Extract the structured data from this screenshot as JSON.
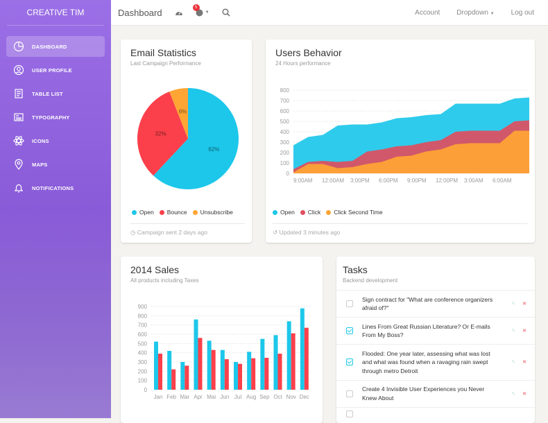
{
  "brand": "CREATIVE TIM",
  "sidebar": {
    "items": [
      {
        "label": "DASHBOARD",
        "icon": "pie-chart-icon",
        "active": true
      },
      {
        "label": "USER PROFILE",
        "icon": "user-icon"
      },
      {
        "label": "TABLE LIST",
        "icon": "note-icon"
      },
      {
        "label": "TYPOGRAPHY",
        "icon": "news-paper-icon"
      },
      {
        "label": "ICONS",
        "icon": "atom-icon"
      },
      {
        "label": "MAPS",
        "icon": "map-pin-icon"
      },
      {
        "label": "NOTIFICATIONS",
        "icon": "bell-icon"
      }
    ]
  },
  "header": {
    "title": "Dashboard",
    "notification_count": "5",
    "account": "Account",
    "dropdown": "Dropdown",
    "logout": "Log out"
  },
  "email_stats": {
    "title": "Email Statistics",
    "subtitle": "Last Campaign Performance",
    "footer": "Campaign sent 2 days ago"
  },
  "users_behavior": {
    "title": "Users Behavior",
    "subtitle": "24 Hours performance",
    "footer": "Updated 3 minutes ago"
  },
  "sales": {
    "title": "2014 Sales",
    "subtitle": "All products including Taxes"
  },
  "tasks": {
    "title": "Tasks",
    "subtitle": "Backend development",
    "items": [
      {
        "text": "Sign contract for \"What are conference organizers afraid of?\"",
        "checked": false
      },
      {
        "text": "Lines From Great Russian Literature? Or E-mails From My Boss?",
        "checked": true
      },
      {
        "text": "Flooded: One year later, assessing what was lost and what was found when a ravaging rain swept through metro Detroit",
        "checked": true
      },
      {
        "text": "Create 4 Invisible User Experiences you Never Knew About",
        "checked": false
      }
    ]
  },
  "colors": {
    "open": "#1dc7ea",
    "bounce": "#fb404b",
    "unsubscribe": "#ffa534",
    "accent": "#9368e9"
  },
  "chart_data": [
    {
      "type": "pie",
      "labels": [
        "Open",
        "Bounce",
        "Unsubscribe"
      ],
      "values": [
        62,
        32,
        6
      ],
      "data_labels": [
        "62%",
        "32%",
        "6%"
      ],
      "legend": "bottom",
      "colors": [
        "#1dc7ea",
        "#fb404b",
        "#ffa534"
      ]
    },
    {
      "type": "area",
      "x": [
        "9:00AM",
        "",
        "12:00AM",
        "",
        "3:00PM",
        "",
        "6:00PM",
        "",
        "9:00PM",
        "",
        "12:00PM",
        "",
        "3:00AM",
        "",
        "6:00AM",
        "",
        ""
      ],
      "x_ticks": [
        "9:00AM",
        "12:00AM",
        "3:00PM",
        "6:00PM",
        "9:00PM",
        "12:00PM",
        "3:00AM",
        "6:00AM"
      ],
      "ylim": [
        0,
        800
      ],
      "y_ticks": [
        0,
        100,
        200,
        300,
        400,
        500,
        600,
        700,
        800
      ],
      "grid": true,
      "legend": "bottom",
      "series": [
        {
          "name": "Open",
          "color": "#1dc7ea",
          "values": [
            270,
            350,
            370,
            460,
            470,
            470,
            490,
            530,
            540,
            560,
            570,
            670,
            670,
            670,
            670,
            720,
            730
          ]
        },
        {
          "name": "Click",
          "color": "#e04e5e",
          "values": [
            40,
            110,
            120,
            110,
            120,
            210,
            230,
            260,
            270,
            300,
            320,
            400,
            410,
            410,
            410,
            500,
            510
          ]
        },
        {
          "name": "Click Second Time",
          "color": "#ffa534",
          "values": [
            10,
            90,
            90,
            50,
            60,
            90,
            110,
            160,
            170,
            210,
            230,
            280,
            290,
            290,
            290,
            410,
            410
          ]
        }
      ]
    },
    {
      "type": "bar",
      "categories": [
        "Jan",
        "Feb",
        "Mar",
        "Apr",
        "Mai",
        "Jun",
        "Jul",
        "Aug",
        "Sep",
        "Oct",
        "Nov",
        "Dec"
      ],
      "ylim": [
        0,
        900
      ],
      "y_ticks": [
        0,
        100,
        200,
        300,
        400,
        500,
        600,
        700,
        800,
        900
      ],
      "grid": true,
      "series": [
        {
          "color": "#1dc7ea",
          "values": [
            520,
            420,
            300,
            760,
            530,
            430,
            300,
            410,
            550,
            590,
            740,
            880
          ]
        },
        {
          "color": "#fb404b",
          "values": [
            390,
            220,
            260,
            560,
            430,
            330,
            280,
            340,
            345,
            390,
            610,
            670
          ]
        }
      ]
    }
  ]
}
